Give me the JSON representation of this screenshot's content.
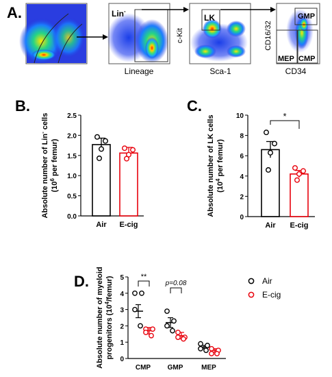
{
  "panels": {
    "A": "A.",
    "B": "B.",
    "C": "C.",
    "D": "D."
  },
  "flow": {
    "gates": [
      "Lin",
      "LK",
      "GMP",
      "MEP",
      "CMP"
    ],
    "lin_superscript": "-",
    "axes": {
      "plot2_x": "Lineage",
      "plot3_x": "Sca-1",
      "plot3_y": "c-Kit",
      "plot4_x": "CD34",
      "plot4_y": "CD16/32"
    }
  },
  "colors": {
    "air": "#000000",
    "ecig": "#e8000b"
  },
  "chart_data": [
    {
      "id": "B",
      "type": "bar",
      "categories": [
        "Air",
        "E-cig"
      ],
      "values": [
        1.77,
        1.56
      ],
      "errors": [
        0.16,
        0.14
      ],
      "points": [
        [
          1.96,
          1.86,
          1.66,
          1.43
        ],
        [
          1.68,
          1.64,
          1.52,
          1.42
        ]
      ],
      "ylabel_line1": "Absolute number of Lin",
      "ylabel_sup1": "-",
      "ylabel_tail1": " cells",
      "ylabel_line2_pre": "(10",
      "ylabel_sup2": "6",
      "ylabel_line2_post": " per femur)",
      "ylim": [
        0,
        2.5
      ],
      "yticks": [
        "0.0",
        "0.5",
        "1.0",
        "1.5",
        "2.0",
        "2.5"
      ]
    },
    {
      "id": "C",
      "type": "bar",
      "categories": [
        "Air",
        "E-cig"
      ],
      "values": [
        6.6,
        4.2
      ],
      "errors": [
        0.8,
        0.35
      ],
      "points": [
        [
          8.3,
          7.2,
          6.3,
          4.6
        ],
        [
          4.8,
          4.5,
          4.2,
          3.6
        ]
      ],
      "ylabel_line1": "Absolute number of LK cells",
      "ylabel_line2_pre": "(10",
      "ylabel_sup2": "4",
      "ylabel_line2_post": " per femur)",
      "ylim": [
        0,
        10
      ],
      "yticks": [
        "0",
        "2",
        "4",
        "6",
        "8",
        "10"
      ],
      "significance": "*"
    },
    {
      "id": "D",
      "type": "scatter",
      "categories": [
        "CMP",
        "GMP",
        "MEP"
      ],
      "series": [
        {
          "name": "Air",
          "means": [
            2.9,
            2.2,
            0.7
          ],
          "errors": [
            0.4,
            0.3,
            0.1
          ],
          "points": [
            [
              4.0,
              4.0,
              3.0,
              2.0
            ],
            [
              2.9,
              2.3,
              2.0,
              1.7
            ],
            [
              0.9,
              0.8,
              0.6,
              0.5
            ]
          ]
        },
        {
          "name": "E-cig",
          "means": [
            1.7,
            1.4,
            0.5
          ],
          "errors": [
            0.2,
            0.2,
            0.1
          ],
          "points": [
            [
              1.8,
              1.8,
              1.6,
              1.4
            ],
            [
              1.6,
              1.3,
              1.3,
              1.2
            ],
            [
              0.6,
              0.5,
              0.3,
              0.3
            ]
          ]
        }
      ],
      "ylabel_line1": "Absolute number of myeloid",
      "ylabel_line2_pre": "progenitors (10",
      "ylabel_sup2": "4",
      "ylabel_line2_post": "/femur)",
      "ylim": [
        0,
        5
      ],
      "yticks": [
        "0",
        "1",
        "2",
        "3",
        "4",
        "5"
      ],
      "annotations": [
        "**",
        "p=0.08"
      ],
      "legend_position": "top-right"
    }
  ]
}
